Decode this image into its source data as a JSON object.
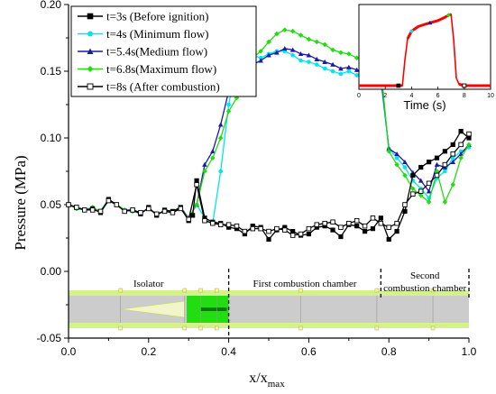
{
  "chart_data": {
    "type": "line",
    "xlabel": "x/x",
    "xlabel_sub": "max",
    "ylabel": "Pressure (MPa)",
    "xlim": [
      0.0,
      1.0
    ],
    "ylim": [
      -0.05,
      0.2
    ],
    "xticks": [
      0.0,
      0.2,
      0.4,
      0.6,
      0.8,
      1.0
    ],
    "xtick_labels": [
      "0.0",
      "0.2",
      "0.4",
      "0.6",
      "0.8",
      "1.0"
    ],
    "yticks": [
      -0.05,
      0.0,
      0.05,
      0.1,
      0.15,
      0.2
    ],
    "ytick_labels": [
      "-0.05",
      "0.00",
      "0.05",
      "0.10",
      "0.15",
      "0.20"
    ],
    "legend_position": "top-left",
    "series": [
      {
        "name": "t=3s  (Before ignition)",
        "color": "#000000",
        "marker": "square-filled",
        "x": [
          0.0,
          0.02,
          0.04,
          0.06,
          0.08,
          0.1,
          0.12,
          0.14,
          0.16,
          0.18,
          0.2,
          0.22,
          0.24,
          0.26,
          0.28,
          0.3,
          0.31,
          0.32,
          0.34,
          0.36,
          0.38,
          0.4,
          0.42,
          0.44,
          0.46,
          0.48,
          0.5,
          0.52,
          0.54,
          0.56,
          0.58,
          0.6,
          0.62,
          0.64,
          0.66,
          0.68,
          0.7,
          0.72,
          0.74,
          0.76,
          0.78,
          0.8,
          0.82,
          0.84,
          0.86,
          0.88,
          0.9,
          0.92,
          0.94,
          0.96,
          0.98,
          1.0
        ],
        "y": [
          0.05,
          0.048,
          0.046,
          0.047,
          0.044,
          0.054,
          0.05,
          0.045,
          0.046,
          0.043,
          0.048,
          0.042,
          0.046,
          0.045,
          0.048,
          0.038,
          0.042,
          0.068,
          0.04,
          0.037,
          0.036,
          0.033,
          0.032,
          0.028,
          0.034,
          0.033,
          0.024,
          0.031,
          0.033,
          0.03,
          0.027,
          0.028,
          0.033,
          0.034,
          0.031,
          0.026,
          0.035,
          0.034,
          0.03,
          0.032,
          0.04,
          0.024,
          0.03,
          0.045,
          0.072,
          0.078,
          0.082,
          0.085,
          0.09,
          0.095,
          0.105,
          0.1
        ]
      },
      {
        "name": "t=4s  (Minimum flow)",
        "color": "#00e5ee",
        "marker": "circle-filled",
        "x": [
          0.0,
          0.02,
          0.04,
          0.06,
          0.08,
          0.1,
          0.12,
          0.14,
          0.16,
          0.18,
          0.2,
          0.22,
          0.24,
          0.26,
          0.28,
          0.3,
          0.32,
          0.34,
          0.36,
          0.38,
          0.4,
          0.42,
          0.44,
          0.46,
          0.48,
          0.5,
          0.52,
          0.54,
          0.56,
          0.58,
          0.6,
          0.62,
          0.64,
          0.66,
          0.68,
          0.7,
          0.72,
          0.74,
          0.76,
          0.78,
          0.8,
          0.82,
          0.84,
          0.86,
          0.88,
          0.9,
          0.92,
          0.94,
          0.96,
          0.98,
          1.0
        ],
        "y": [
          0.05,
          0.047,
          0.046,
          0.048,
          0.044,
          0.053,
          0.05,
          0.046,
          0.045,
          0.044,
          0.047,
          0.043,
          0.045,
          0.044,
          0.047,
          0.04,
          0.05,
          0.04,
          0.036,
          0.075,
          0.125,
          0.155,
          0.158,
          0.162,
          0.16,
          0.163,
          0.165,
          0.165,
          0.162,
          0.158,
          0.157,
          0.155,
          0.152,
          0.15,
          0.148,
          0.15,
          0.147,
          0.146,
          0.145,
          0.143,
          0.092,
          0.085,
          0.078,
          0.068,
          0.062,
          0.055,
          0.07,
          0.075,
          0.085,
          0.09,
          0.093
        ]
      },
      {
        "name": "t=5.4s(Medium flow)",
        "color": "#1a1aa6",
        "marker": "triangle-filled",
        "x": [
          0.0,
          0.02,
          0.04,
          0.06,
          0.08,
          0.1,
          0.12,
          0.14,
          0.16,
          0.18,
          0.2,
          0.22,
          0.24,
          0.26,
          0.28,
          0.3,
          0.32,
          0.34,
          0.36,
          0.38,
          0.4,
          0.42,
          0.44,
          0.46,
          0.48,
          0.5,
          0.52,
          0.54,
          0.56,
          0.58,
          0.6,
          0.62,
          0.64,
          0.66,
          0.68,
          0.7,
          0.72,
          0.74,
          0.76,
          0.78,
          0.8,
          0.82,
          0.84,
          0.86,
          0.88,
          0.9,
          0.92,
          0.94,
          0.96,
          0.98,
          1.0
        ],
        "y": [
          0.05,
          0.048,
          0.046,
          0.047,
          0.045,
          0.054,
          0.05,
          0.046,
          0.046,
          0.044,
          0.047,
          0.043,
          0.045,
          0.045,
          0.048,
          0.04,
          0.05,
          0.08,
          0.09,
          0.11,
          0.135,
          0.14,
          0.148,
          0.155,
          0.158,
          0.162,
          0.164,
          0.167,
          0.166,
          0.163,
          0.162,
          0.159,
          0.157,
          0.155,
          0.152,
          0.153,
          0.151,
          0.15,
          0.148,
          0.147,
          0.092,
          0.088,
          0.082,
          0.074,
          0.068,
          0.06,
          0.08,
          0.078,
          0.082,
          0.088,
          0.095
        ]
      },
      {
        "name": "t=6.8s(Maximum flow)",
        "color": "#22dd11",
        "marker": "diamond-filled",
        "x": [
          0.0,
          0.02,
          0.04,
          0.06,
          0.08,
          0.1,
          0.12,
          0.14,
          0.16,
          0.18,
          0.2,
          0.22,
          0.24,
          0.26,
          0.28,
          0.3,
          0.32,
          0.34,
          0.36,
          0.38,
          0.4,
          0.42,
          0.44,
          0.46,
          0.48,
          0.5,
          0.52,
          0.54,
          0.56,
          0.58,
          0.6,
          0.62,
          0.64,
          0.66,
          0.68,
          0.7,
          0.72,
          0.74,
          0.76,
          0.78,
          0.8,
          0.82,
          0.84,
          0.86,
          0.88,
          0.9,
          0.92,
          0.94,
          0.96,
          0.98,
          1.0
        ],
        "y": [
          0.05,
          0.047,
          0.046,
          0.048,
          0.045,
          0.054,
          0.05,
          0.046,
          0.045,
          0.044,
          0.047,
          0.043,
          0.045,
          0.045,
          0.047,
          0.04,
          0.05,
          0.075,
          0.085,
          0.1,
          0.12,
          0.13,
          0.152,
          0.16,
          0.165,
          0.172,
          0.178,
          0.181,
          0.18,
          0.177,
          0.174,
          0.172,
          0.17,
          0.166,
          0.164,
          0.163,
          0.16,
          0.158,
          0.155,
          0.153,
          0.09,
          0.08,
          0.072,
          0.062,
          0.057,
          0.052,
          0.075,
          0.052,
          0.065,
          0.085,
          0.095
        ]
      },
      {
        "name": "t=8s  (After combustion)",
        "color": "#000000",
        "marker": "square-open",
        "x": [
          0.0,
          0.02,
          0.04,
          0.06,
          0.08,
          0.1,
          0.12,
          0.14,
          0.16,
          0.18,
          0.2,
          0.22,
          0.24,
          0.26,
          0.28,
          0.3,
          0.32,
          0.34,
          0.36,
          0.38,
          0.4,
          0.42,
          0.44,
          0.46,
          0.48,
          0.5,
          0.52,
          0.54,
          0.56,
          0.58,
          0.6,
          0.62,
          0.64,
          0.66,
          0.68,
          0.7,
          0.72,
          0.74,
          0.76,
          0.78,
          0.8,
          0.82,
          0.84,
          0.86,
          0.88,
          0.9,
          0.92,
          0.94,
          0.96,
          0.98,
          1.0
        ],
        "y": [
          0.05,
          0.048,
          0.046,
          0.046,
          0.045,
          0.053,
          0.05,
          0.045,
          0.046,
          0.044,
          0.047,
          0.043,
          0.045,
          0.044,
          0.047,
          0.039,
          0.065,
          0.038,
          0.036,
          0.035,
          0.035,
          0.034,
          0.03,
          0.032,
          0.032,
          0.03,
          0.032,
          0.031,
          0.027,
          0.028,
          0.032,
          0.035,
          0.036,
          0.037,
          0.033,
          0.036,
          0.038,
          0.034,
          0.04,
          0.036,
          0.033,
          0.036,
          0.05,
          0.058,
          0.06,
          0.066,
          0.072,
          0.08,
          0.088,
          0.095,
          0.103
        ]
      }
    ],
    "annotations": {
      "section_labels": [
        "Isolator",
        "First combustion chamber",
        "Second",
        "combustion chamber"
      ],
      "inset_xlabel": "Time (s)",
      "inset_xticks": [
        "0",
        "2",
        "4",
        "6",
        "8",
        "10"
      ]
    }
  },
  "colors": {
    "duct_fill": "#cccccc",
    "duct_border": "#d6f08a",
    "injector_green": "#22dd11",
    "inset_line": "#ff0000"
  }
}
